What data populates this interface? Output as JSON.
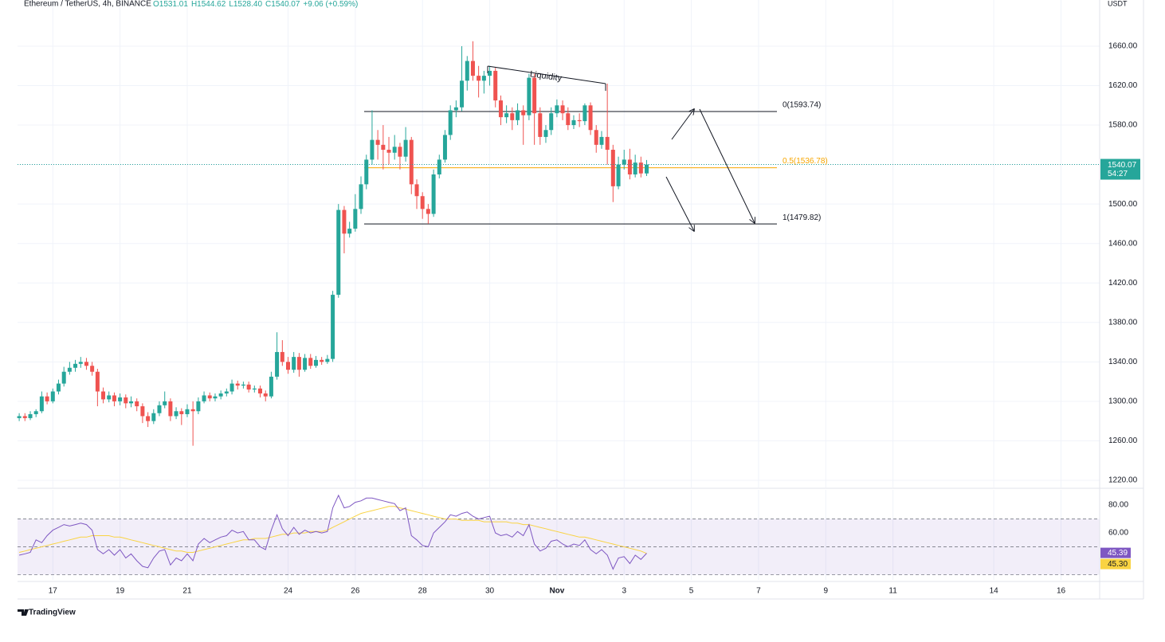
{
  "chart_data": {
    "type": "candlestick",
    "title": "Ethereum / TetherUS, 4h, BINANCE",
    "header_values": [
      "O1531.01",
      "H1544.62",
      "L1528.40",
      "C1540.07"
    ],
    "change": "+9.06 (+0.59%)",
    "unit": "USDT",
    "countdown": "54:27",
    "annotation": "Liquidity",
    "brand": "TradingView",
    "up_color": "#26a69a",
    "down_color": "#ef5350",
    "xlim": [
      15.95,
      48.15
    ],
    "xticks": [
      17,
      19,
      21,
      24,
      26,
      28,
      30,
      {
        "value": 32,
        "label": "Nov"
      },
      {
        "value": 34,
        "label": "3"
      },
      {
        "value": 36,
        "label": "5"
      },
      {
        "value": 38,
        "label": "7"
      },
      {
        "value": 40,
        "label": "9"
      },
      {
        "value": 42,
        "label": "11"
      },
      {
        "value": 45,
        "label": "14"
      },
      {
        "value": 47,
        "label": "16"
      }
    ],
    "ylim": [
      1212.7,
      1706.8
    ],
    "yticks": [
      {
        "value": 1220,
        "label": "1220.00"
      },
      {
        "value": 1260,
        "label": "1260.00"
      },
      {
        "value": 1300,
        "label": "1300.00"
      },
      {
        "value": 1340,
        "label": "1340.00"
      },
      {
        "value": 1380,
        "label": "1380.00"
      },
      {
        "value": 1420,
        "label": "1420.00"
      },
      {
        "value": 1460,
        "label": "1460.00"
      },
      {
        "value": 1500,
        "label": "1500.00"
      },
      {
        "value": 1540,
        "label": "1540.00"
      },
      {
        "value": 1580,
        "label": "1580.00"
      },
      {
        "value": 1620,
        "label": "1620.00"
      },
      {
        "value": 1660,
        "label": "1660.00"
      }
    ],
    "grid": true,
    "fib": [
      {
        "value": 1593.74,
        "label": "0(1593.74)",
        "color": "#131722"
      },
      {
        "value": 1536.78,
        "label": "0.5(1536.78)",
        "color": "#f7a600"
      },
      {
        "value": 1479.82,
        "label": "1(1479.82)",
        "color": "#131722"
      }
    ],
    "x": [
      16,
      16.17,
      16.33,
      16.5,
      16.67,
      16.83,
      17,
      17.17,
      17.33,
      17.5,
      17.67,
      17.83,
      18,
      18.17,
      18.33,
      18.5,
      18.67,
      18.83,
      19,
      19.17,
      19.33,
      19.5,
      19.67,
      19.83,
      20,
      20.17,
      20.33,
      20.5,
      20.67,
      20.83,
      21,
      21.17,
      21.33,
      21.5,
      21.67,
      21.83,
      22,
      22.17,
      22.33,
      22.5,
      22.67,
      22.83,
      23,
      23.17,
      23.33,
      23.5,
      23.67,
      23.83,
      24,
      24.17,
      24.33,
      24.5,
      24.67,
      24.83,
      25,
      25.17,
      25.33,
      25.5,
      25.67,
      25.83,
      26,
      26.17,
      26.33,
      26.5,
      26.67,
      26.83,
      27,
      27.17,
      27.33,
      27.5,
      27.67,
      27.83,
      28,
      28.17,
      28.33,
      28.5,
      28.67,
      28.83,
      29,
      29.17,
      29.33,
      29.5,
      29.67,
      29.83,
      30,
      30.17,
      30.33,
      30.5,
      30.67,
      30.83,
      31,
      31.17,
      31.33,
      31.5,
      31.67,
      31.83,
      32,
      32.17,
      32.33,
      32.5,
      32.67,
      32.83,
      33,
      33.17,
      33.33,
      33.5,
      33.67,
      33.83,
      34,
      34.17,
      34.33,
      34.5,
      34.67
    ],
    "candles": [
      [
        1283,
        1288,
        1280,
        1285
      ],
      [
        1285,
        1288,
        1280,
        1283
      ],
      [
        1283,
        1290,
        1281,
        1287
      ],
      [
        1287,
        1292,
        1284,
        1290
      ],
      [
        1290,
        1310,
        1288,
        1305
      ],
      [
        1305,
        1309,
        1297,
        1300
      ],
      [
        1300,
        1313,
        1298,
        1310
      ],
      [
        1310,
        1322,
        1307,
        1318
      ],
      [
        1318,
        1335,
        1315,
        1330
      ],
      [
        1330,
        1340,
        1327,
        1334
      ],
      [
        1334,
        1342,
        1330,
        1338
      ],
      [
        1338,
        1345,
        1334,
        1340
      ],
      [
        1340,
        1344,
        1332,
        1336
      ],
      [
        1336,
        1340,
        1326,
        1330
      ],
      [
        1330,
        1333,
        1295,
        1310
      ],
      [
        1310,
        1314,
        1298,
        1302
      ],
      [
        1302,
        1310,
        1299,
        1306
      ],
      [
        1306,
        1309,
        1295,
        1300
      ],
      [
        1300,
        1308,
        1296,
        1304
      ],
      [
        1304,
        1307,
        1293,
        1298
      ],
      [
        1298,
        1305,
        1294,
        1300
      ],
      [
        1300,
        1303,
        1290,
        1295
      ],
      [
        1295,
        1298,
        1278,
        1285
      ],
      [
        1285,
        1289,
        1274,
        1280
      ],
      [
        1280,
        1292,
        1277,
        1288
      ],
      [
        1288,
        1300,
        1285,
        1296
      ],
      [
        1296,
        1310,
        1293,
        1300
      ],
      [
        1300,
        1303,
        1280,
        1285
      ],
      [
        1285,
        1294,
        1282,
        1290
      ],
      [
        1290,
        1293,
        1276,
        1287
      ],
      [
        1287,
        1297,
        1284,
        1292
      ],
      [
        1292,
        1300,
        1255,
        1290
      ],
      [
        1290,
        1304,
        1287,
        1300
      ],
      [
        1300,
        1310,
        1298,
        1306
      ],
      [
        1306,
        1309,
        1300,
        1303
      ],
      [
        1303,
        1308,
        1300,
        1305
      ],
      [
        1305,
        1311,
        1302,
        1308
      ],
      [
        1308,
        1313,
        1305,
        1310
      ],
      [
        1310,
        1322,
        1307,
        1318
      ],
      [
        1318,
        1321,
        1312,
        1316
      ],
      [
        1316,
        1320,
        1313,
        1317
      ],
      [
        1317,
        1320,
        1309,
        1312
      ],
      [
        1312,
        1316,
        1309,
        1313
      ],
      [
        1313,
        1316,
        1304,
        1308
      ],
      [
        1308,
        1311,
        1300,
        1305
      ],
      [
        1305,
        1330,
        1303,
        1325
      ],
      [
        1325,
        1370,
        1322,
        1350
      ],
      [
        1350,
        1362,
        1336,
        1340
      ],
      [
        1340,
        1345,
        1328,
        1332
      ],
      [
        1332,
        1350,
        1329,
        1345
      ],
      [
        1345,
        1349,
        1325,
        1332
      ],
      [
        1332,
        1348,
        1330,
        1344
      ],
      [
        1344,
        1348,
        1333,
        1336
      ],
      [
        1336,
        1346,
        1334,
        1342
      ],
      [
        1342,
        1345,
        1337,
        1340
      ],
      [
        1340,
        1347,
        1338,
        1343
      ],
      [
        1343,
        1412,
        1340,
        1408
      ],
      [
        1408,
        1500,
        1405,
        1494
      ],
      [
        1494,
        1498,
        1450,
        1470
      ],
      [
        1470,
        1482,
        1466,
        1475
      ],
      [
        1475,
        1510,
        1472,
        1495
      ],
      [
        1495,
        1528,
        1490,
        1520
      ],
      [
        1520,
        1550,
        1515,
        1545
      ],
      [
        1545,
        1595,
        1540,
        1565
      ],
      [
        1565,
        1575,
        1545,
        1560
      ],
      [
        1560,
        1580,
        1535,
        1555
      ],
      [
        1555,
        1568,
        1540,
        1552
      ],
      [
        1552,
        1570,
        1545,
        1558
      ],
      [
        1558,
        1562,
        1535,
        1548
      ],
      [
        1548,
        1578,
        1543,
        1565
      ],
      [
        1565,
        1568,
        1510,
        1520
      ],
      [
        1520,
        1525,
        1495,
        1508
      ],
      [
        1508,
        1512,
        1485,
        1495
      ],
      [
        1495,
        1500,
        1480,
        1490
      ],
      [
        1490,
        1535,
        1487,
        1530
      ],
      [
        1530,
        1550,
        1526,
        1545
      ],
      [
        1545,
        1575,
        1542,
        1570
      ],
      [
        1570,
        1600,
        1565,
        1595
      ],
      [
        1595,
        1605,
        1588,
        1598
      ],
      [
        1598,
        1660,
        1594,
        1625
      ],
      [
        1625,
        1650,
        1615,
        1645
      ],
      [
        1645,
        1665,
        1625,
        1630
      ],
      [
        1630,
        1640,
        1608,
        1625
      ],
      [
        1625,
        1635,
        1612,
        1630
      ],
      [
        1630,
        1640,
        1620,
        1635
      ],
      [
        1635,
        1638,
        1598,
        1605
      ],
      [
        1605,
        1610,
        1580,
        1588
      ],
      [
        1588,
        1600,
        1582,
        1592
      ],
      [
        1592,
        1598,
        1575,
        1585
      ],
      [
        1585,
        1602,
        1580,
        1595
      ],
      [
        1595,
        1600,
        1560,
        1590
      ],
      [
        1590,
        1632,
        1585,
        1628
      ],
      [
        1628,
        1632,
        1560,
        1592
      ],
      [
        1592,
        1598,
        1560,
        1568
      ],
      [
        1568,
        1580,
        1562,
        1575
      ],
      [
        1575,
        1598,
        1570,
        1592
      ],
      [
        1592,
        1606,
        1588,
        1600
      ],
      [
        1600,
        1605,
        1585,
        1592
      ],
      [
        1592,
        1598,
        1575,
        1580
      ],
      [
        1580,
        1590,
        1576,
        1585
      ],
      [
        1585,
        1592,
        1578,
        1584
      ],
      [
        1584,
        1602,
        1580,
        1600
      ],
      [
        1600,
        1603,
        1570,
        1575
      ],
      [
        1575,
        1580,
        1552,
        1560
      ],
      [
        1560,
        1574,
        1556,
        1568
      ],
      [
        1568,
        1622,
        1540,
        1555
      ],
      [
        1555,
        1560,
        1502,
        1518
      ],
      [
        1518,
        1548,
        1515,
        1540
      ],
      [
        1540,
        1555,
        1535,
        1545
      ],
      [
        1545,
        1556,
        1525,
        1530
      ],
      [
        1530,
        1550,
        1527,
        1542
      ],
      [
        1542,
        1548,
        1527,
        1531.01
      ],
      [
        1531.01,
        1544.62,
        1528.4,
        1540.07
      ]
    ],
    "rsi": {
      "color": "#7e57c2",
      "values": [
        44,
        45,
        46,
        55,
        53,
        58,
        62,
        64,
        66,
        65,
        66,
        67,
        66,
        62,
        48,
        45,
        48,
        44,
        48,
        42,
        45,
        40,
        36,
        35,
        42,
        47,
        48,
        37,
        42,
        40,
        45,
        40,
        52,
        56,
        53,
        55,
        57,
        58,
        62,
        60,
        61,
        55,
        55,
        50,
        48,
        62,
        73,
        63,
        58,
        64,
        59,
        62,
        60,
        61,
        60,
        61,
        78,
        87,
        78,
        79,
        82,
        83,
        85,
        85,
        84,
        83,
        82,
        81,
        76,
        78,
        58,
        55,
        51,
        50,
        60,
        64,
        68,
        73,
        72,
        74,
        75,
        72,
        70,
        71,
        72,
        60,
        58,
        59,
        57,
        61,
        58,
        66,
        52,
        47,
        49,
        54,
        55,
        52,
        50,
        52,
        51,
        55,
        48,
        45,
        48,
        44,
        34,
        42,
        43,
        38,
        44,
        41,
        45.39
      ],
      "ma_color": "#f9d342",
      "ma": [
        46,
        47,
        48,
        49,
        50,
        51,
        52,
        53,
        54,
        55,
        56,
        57,
        57,
        58,
        58,
        58,
        58,
        57,
        57,
        56,
        55,
        54,
        53,
        52,
        51,
        50,
        49,
        48,
        47,
        47,
        46,
        46,
        47,
        48,
        49,
        50,
        51,
        52,
        53,
        54,
        55,
        55,
        56,
        56,
        56,
        57,
        58,
        59,
        59,
        60,
        60,
        60,
        61,
        61,
        61,
        62,
        64,
        66,
        68,
        70,
        72,
        74,
        75,
        76,
        77,
        78,
        79,
        79,
        78,
        77,
        76,
        75,
        74,
        73,
        72,
        71,
        70,
        70,
        70,
        69,
        69,
        69,
        69,
        68,
        68,
        68,
        68,
        68,
        67,
        67,
        66,
        66,
        65,
        64,
        63,
        62,
        61,
        60,
        59,
        58,
        57,
        57,
        56,
        55,
        54,
        53,
        52,
        51,
        50,
        49,
        48,
        47,
        45.3
      ],
      "ma_last_label": "45.30",
      "ylim": [
        26.3,
        90.9
      ],
      "yticks": [
        {
          "value": 60,
          "label": "60.00"
        },
        {
          "value": 80,
          "label": "80.00"
        }
      ],
      "levels": [
        70,
        50,
        30
      ]
    }
  }
}
